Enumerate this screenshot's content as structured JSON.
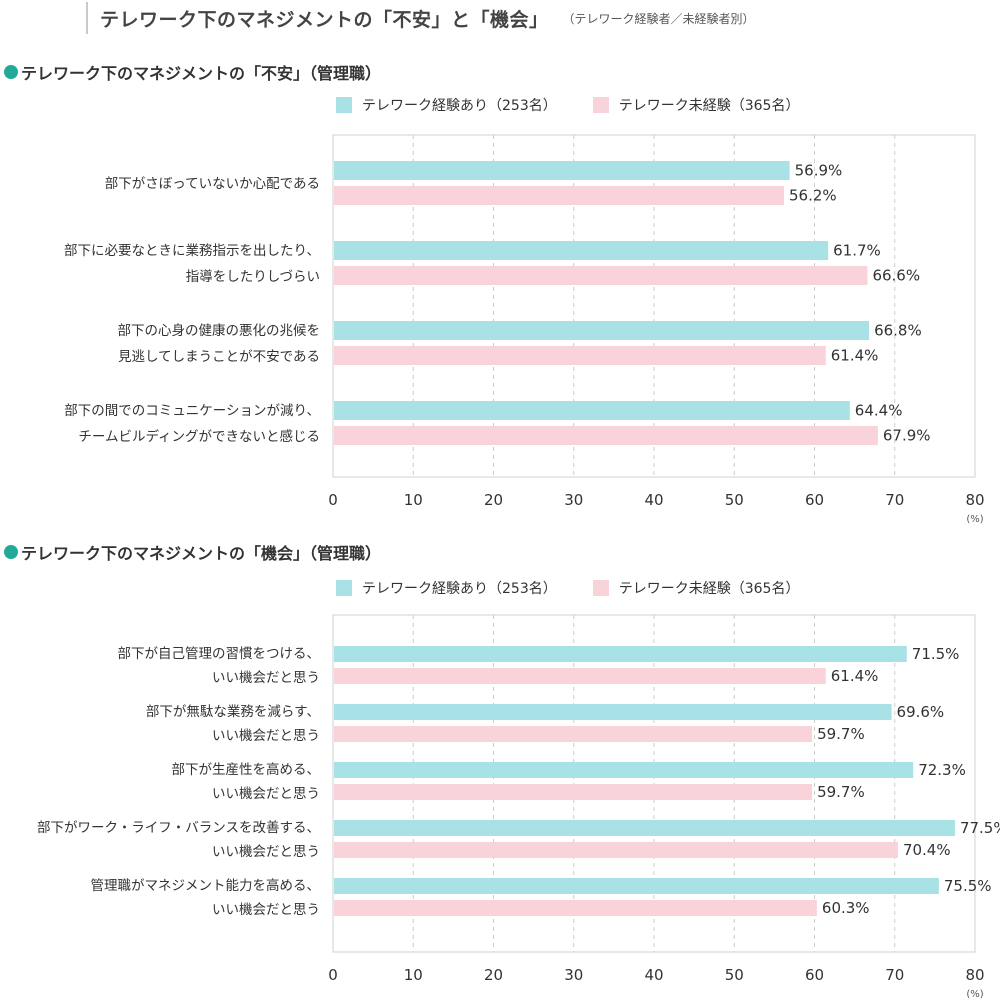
{
  "page": {
    "title": "テレワーク下のマネジメントの「不安」と「機会」",
    "subtitle": "（テレワーク経験者／未経験者別）"
  },
  "colors": {
    "accent": "#22a99a",
    "series_1": "#a8e1e6",
    "series_2": "#f8d3da",
    "grid": "#cccccc"
  },
  "legend": [
    {
      "label": "テレワーク経験あり（253名）"
    },
    {
      "label": "テレワーク未経験（365名）"
    }
  ],
  "chart_data": [
    {
      "type": "bar",
      "orientation": "horizontal",
      "title": "テレワーク下のマネジメントの「不安」（管理職）",
      "categories": [
        [
          "部下がさぼっていないか心配である"
        ],
        [
          "部下に必要なときに業務指示を出したり、",
          "指導をしたりしづらい"
        ],
        [
          "部下の心身の健康の悪化の兆候を",
          "見逃してしまうことが不安である"
        ],
        [
          "部下の間でのコミュニケーションが減り、",
          "チームビルディングができないと感じる"
        ]
      ],
      "series": [
        {
          "name": "テレワーク経験あり（253名）",
          "values": [
            56.9,
            61.7,
            66.8,
            64.4
          ]
        },
        {
          "name": "テレワーク未経験（365名）",
          "values": [
            56.2,
            66.6,
            61.4,
            67.9
          ]
        }
      ],
      "value_suffix": "%",
      "xlim": [
        0,
        80
      ],
      "xticks": [
        "0",
        "10",
        "20",
        "30",
        "40",
        "50",
        "60",
        "70",
        "80"
      ],
      "unit": "(%)",
      "grid": true
    },
    {
      "type": "bar",
      "orientation": "horizontal",
      "title": "テレワーク下のマネジメントの「機会」（管理職）",
      "categories": [
        [
          "部下が自己管理の習慣をつける、",
          "いい機会だと思う"
        ],
        [
          "部下が無駄な業務を減らす、",
          "いい機会だと思う"
        ],
        [
          "部下が生産性を高める、",
          "いい機会だと思う"
        ],
        [
          "部下がワーク・ライフ・バランスを改善する、",
          "いい機会だと思う"
        ],
        [
          "管理職がマネジメント能力を高める、",
          "いい機会だと思う"
        ]
      ],
      "series": [
        {
          "name": "テレワーク経験あり（253名）",
          "values": [
            71.5,
            69.6,
            72.3,
            77.5,
            75.5
          ]
        },
        {
          "name": "テレワーク未経験（365名）",
          "values": [
            61.4,
            59.7,
            59.7,
            70.4,
            60.3
          ]
        }
      ],
      "value_suffix": "%",
      "xlim": [
        0,
        80
      ],
      "xticks": [
        "0",
        "10",
        "20",
        "30",
        "40",
        "50",
        "60",
        "70",
        "80"
      ],
      "unit": "(%)",
      "grid": true
    }
  ]
}
